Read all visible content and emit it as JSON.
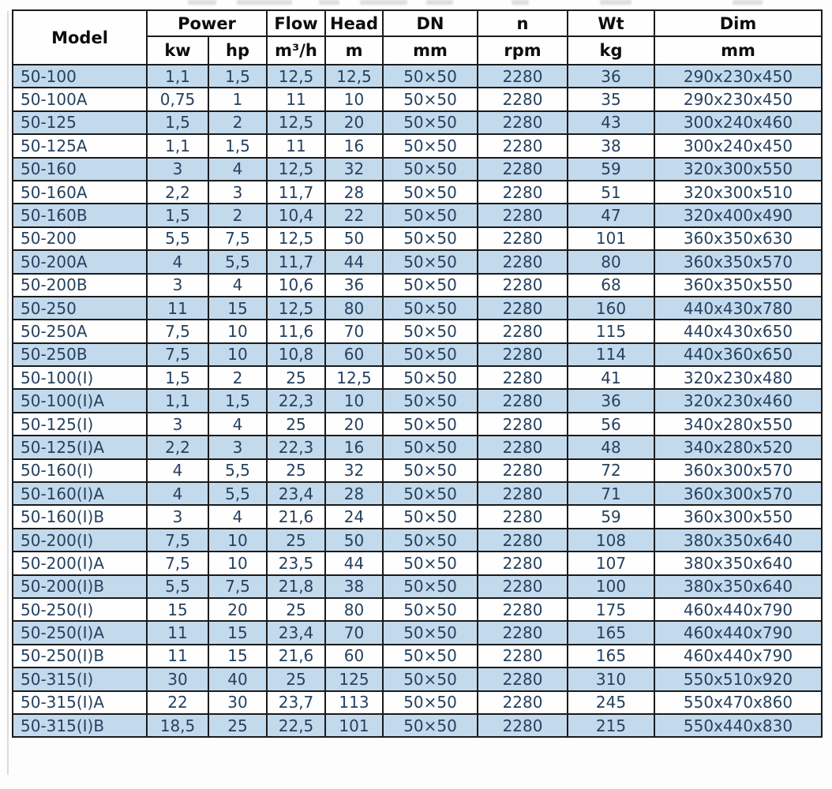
{
  "colors": {
    "stripe_blue": "#c3d9ec",
    "row_white": "#fefefe",
    "border": "#1b1b1b",
    "header_text": "#0d0d0d",
    "data_text": "#26415f"
  },
  "table": {
    "header": {
      "model": "Model",
      "power": "Power",
      "flow": "Flow",
      "head": "Head",
      "dn": "DN",
      "n": "n",
      "wt": "Wt",
      "dim": "Dim"
    },
    "units": {
      "kw": "kw",
      "hp": "hp",
      "flow": "m³/h",
      "head": "m",
      "dn": "mm",
      "n": "rpm",
      "wt": "kg",
      "dim": "mm"
    },
    "columns": [
      "model",
      "kw",
      "hp",
      "flow",
      "head",
      "dn",
      "n",
      "wt",
      "dim"
    ],
    "rows": [
      [
        "50-100",
        "1,1",
        "1,5",
        "12,5",
        "12,5",
        "50×50",
        "2280",
        "36",
        "290x230x450"
      ],
      [
        "50-100A",
        "0,75",
        "1",
        "11",
        "10",
        "50×50",
        "2280",
        "35",
        "290x230x450"
      ],
      [
        "50-125",
        "1,5",
        "2",
        "12,5",
        "20",
        "50×50",
        "2280",
        "43",
        "300x240x460"
      ],
      [
        "50-125A",
        "1,1",
        "1,5",
        "11",
        "16",
        "50×50",
        "2280",
        "38",
        "300x240x450"
      ],
      [
        "50-160",
        "3",
        "4",
        "12,5",
        "32",
        "50×50",
        "2280",
        "59",
        "320x300x550"
      ],
      [
        "50-160A",
        "2,2",
        "3",
        "11,7",
        "28",
        "50×50",
        "2280",
        "51",
        "320x300x510"
      ],
      [
        "50-160B",
        "1,5",
        "2",
        "10,4",
        "22",
        "50×50",
        "2280",
        "47",
        "320x400x490"
      ],
      [
        "50-200",
        "5,5",
        "7,5",
        "12,5",
        "50",
        "50×50",
        "2280",
        "101",
        "360x350x630"
      ],
      [
        "50-200A",
        "4",
        "5,5",
        "11,7",
        "44",
        "50×50",
        "2280",
        "80",
        "360x350x570"
      ],
      [
        "50-200B",
        "3",
        "4",
        "10,6",
        "36",
        "50×50",
        "2280",
        "68",
        "360x350x550"
      ],
      [
        "50-250",
        "11",
        "15",
        "12,5",
        "80",
        "50×50",
        "2280",
        "160",
        "440x430x780"
      ],
      [
        "50-250A",
        "7,5",
        "10",
        "11,6",
        "70",
        "50×50",
        "2280",
        "115",
        "440x430x650"
      ],
      [
        "50-250B",
        "7,5",
        "10",
        "10,8",
        "60",
        "50×50",
        "2280",
        "114",
        "440x360x650"
      ],
      [
        "50-100(I)",
        "1,5",
        "2",
        "25",
        "12,5",
        "50×50",
        "2280",
        "41",
        "320x230x480"
      ],
      [
        "50-100(I)A",
        "1,1",
        "1,5",
        "22,3",
        "10",
        "50×50",
        "2280",
        "36",
        "320x230x460"
      ],
      [
        "50-125(I)",
        "3",
        "4",
        "25",
        "20",
        "50×50",
        "2280",
        "56",
        "340x280x550"
      ],
      [
        "50-125(I)A",
        "2,2",
        "3",
        "22,3",
        "16",
        "50×50",
        "2280",
        "48",
        "340x280x520"
      ],
      [
        "50-160(I)",
        "4",
        "5,5",
        "25",
        "32",
        "50×50",
        "2280",
        "72",
        "360x300x570"
      ],
      [
        "50-160(I)A",
        "4",
        "5,5",
        "23,4",
        "28",
        "50×50",
        "2280",
        "71",
        "360x300x570"
      ],
      [
        "50-160(I)B",
        "3",
        "4",
        "21,6",
        "24",
        "50×50",
        "2280",
        "59",
        "360x300x550"
      ],
      [
        "50-200(I)",
        "7,5",
        "10",
        "25",
        "50",
        "50×50",
        "2280",
        "108",
        "380x350x640"
      ],
      [
        "50-200(I)A",
        "7,5",
        "10",
        "23,5",
        "44",
        "50×50",
        "2280",
        "107",
        "380x350x640"
      ],
      [
        "50-200(I)B",
        "5,5",
        "7,5",
        "21,8",
        "38",
        "50×50",
        "2280",
        "100",
        "380x350x640"
      ],
      [
        "50-250(I)",
        "15",
        "20",
        "25",
        "80",
        "50×50",
        "2280",
        "175",
        "460x440x790"
      ],
      [
        "50-250(I)A",
        "11",
        "15",
        "23,4",
        "70",
        "50×50",
        "2280",
        "165",
        "460x440x790"
      ],
      [
        "50-250(I)B",
        "11",
        "15",
        "21,6",
        "60",
        "50×50",
        "2280",
        "165",
        "460x440x790"
      ],
      [
        "50-315(I)",
        "30",
        "40",
        "25",
        "125",
        "50×50",
        "2280",
        "310",
        "550x510x920"
      ],
      [
        "50-315(I)A",
        "22",
        "30",
        "23,7",
        "113",
        "50×50",
        "2280",
        "245",
        "550x470x860"
      ],
      [
        "50-315(I)B",
        "18,5",
        "25",
        "22,5",
        "101",
        "50×50",
        "2280",
        "215",
        "550x440x830"
      ]
    ]
  }
}
